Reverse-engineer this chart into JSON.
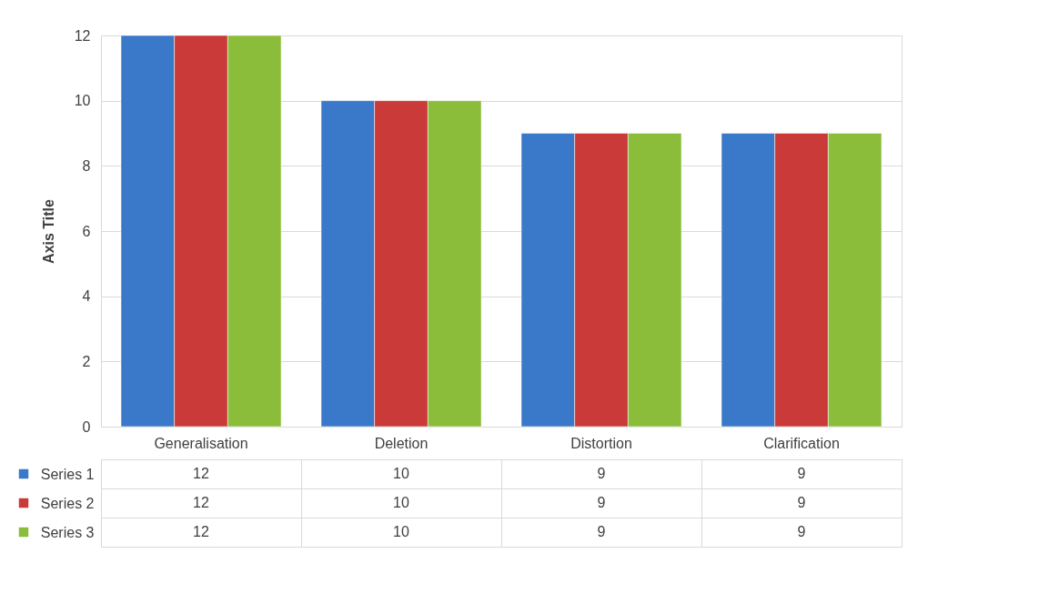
{
  "chart_data": {
    "type": "bar",
    "ylabel": "Axis Title",
    "categories": [
      "Generalisation",
      "Deletion",
      "Distortion",
      "Clarification"
    ],
    "series": [
      {
        "name": "Series 1",
        "color": "#3a78c9",
        "values": [
          12,
          10,
          9,
          9
        ]
      },
      {
        "name": "Series 2",
        "color": "#c93a38",
        "values": [
          12,
          10,
          9,
          9
        ]
      },
      {
        "name": "Series 3",
        "color": "#8cbd3a",
        "values": [
          12,
          10,
          9,
          9
        ]
      }
    ],
    "ylim": [
      0,
      12
    ],
    "yticks": [
      0,
      2,
      4,
      6,
      8,
      10,
      12
    ],
    "grid": "y",
    "data_labels": true,
    "legend": "bottom"
  }
}
